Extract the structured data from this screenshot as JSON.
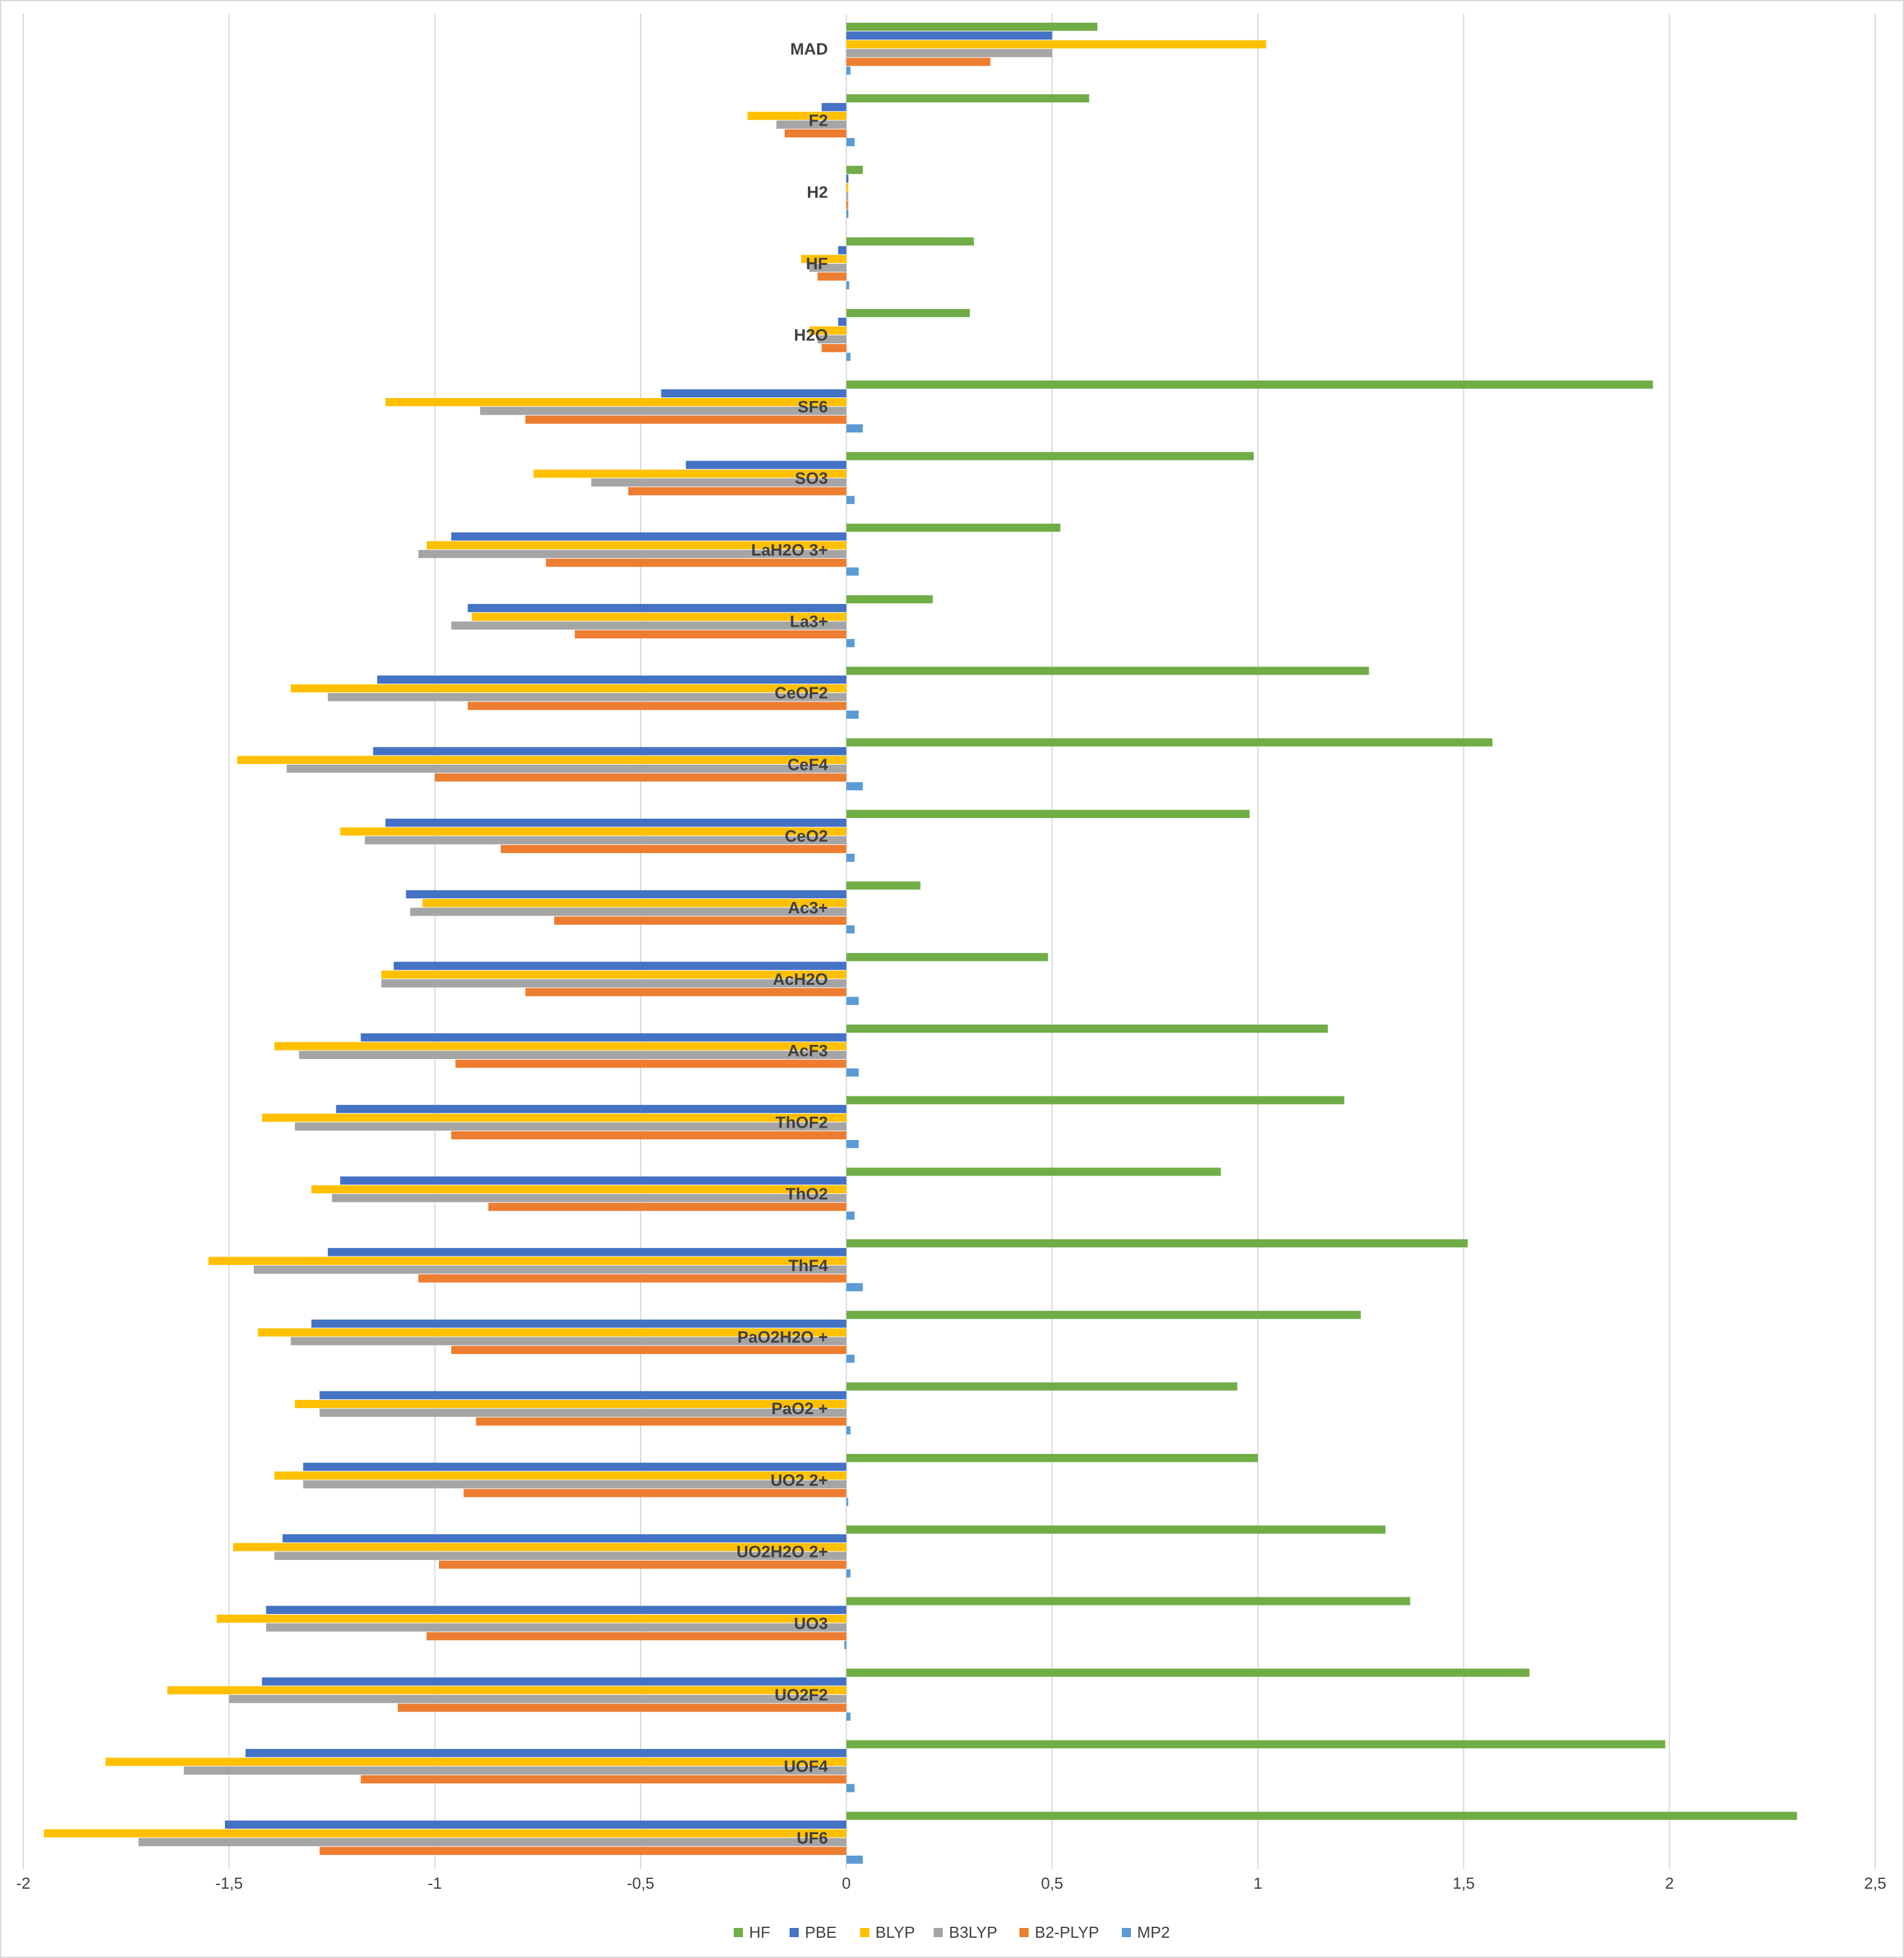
{
  "chart_data": {
    "type": "bar",
    "orientation": "horizontal",
    "title": "",
    "xlabel": "",
    "ylabel": "",
    "xlim": [
      -2,
      2.5
    ],
    "x_ticks": [
      "-2",
      "-1,5",
      "-1",
      "-0,5",
      "0",
      "0,5",
      "1",
      "1,5",
      "2",
      "2,5"
    ],
    "x_tick_values": [
      -2,
      -1.5,
      -1,
      -0.5,
      0,
      0.5,
      1,
      1.5,
      2,
      2.5
    ],
    "grid": "vertical",
    "legend_position": "bottom",
    "categories": [
      "MAD",
      "F2",
      "H2",
      "HF",
      "H2O",
      "SF6",
      "SO3",
      "LaH2O 3+",
      "La3+",
      "CeOF2",
      "CeF4",
      "CeO2",
      "Ac3+",
      "AcH2O",
      "AcF3",
      "ThOF2",
      "ThO2",
      "ThF4",
      "PaO2H2O +",
      "PaO2 +",
      "UO2 2+",
      "UO2H2O 2+",
      "UO3",
      "UO2F2",
      "UOF4",
      "UF6"
    ],
    "series": [
      {
        "name": "HF",
        "color": "#70AD47",
        "values": [
          0.61,
          0.59,
          0.04,
          0.31,
          0.3,
          1.96,
          0.99,
          0.52,
          0.21,
          1.27,
          1.57,
          0.98,
          0.18,
          0.49,
          1.17,
          1.21,
          0.91,
          1.51,
          1.25,
          0.95,
          1.0,
          1.31,
          1.37,
          1.66,
          1.99,
          2.31
        ]
      },
      {
        "name": "PBE",
        "color": "#4472C4",
        "values": [
          0.5,
          -0.06,
          0.005,
          -0.02,
          -0.02,
          -0.45,
          -0.39,
          -0.96,
          -0.92,
          -1.14,
          -1.15,
          -1.12,
          -1.07,
          -1.1,
          -1.18,
          -1.24,
          -1.23,
          -1.26,
          -1.3,
          -1.28,
          -1.32,
          -1.37,
          -1.41,
          -1.42,
          -1.46,
          -1.51
        ]
      },
      {
        "name": "BLYP",
        "color": "#FFC000",
        "values": [
          1.02,
          -0.24,
          0.003,
          -0.11,
          -0.09,
          -1.12,
          -0.76,
          -1.02,
          -0.91,
          -1.35,
          -1.48,
          -1.23,
          -1.03,
          -1.13,
          -1.39,
          -1.42,
          -1.3,
          -1.55,
          -1.43,
          -1.34,
          -1.39,
          -1.49,
          -1.53,
          -1.65,
          -1.8,
          -1.95
        ]
      },
      {
        "name": "B3LYP",
        "color": "#A5A5A5",
        "values": [
          0.5,
          -0.17,
          0.002,
          -0.09,
          -0.07,
          -0.89,
          -0.62,
          -1.04,
          -0.96,
          -1.26,
          -1.36,
          -1.17,
          -1.06,
          -1.13,
          -1.33,
          -1.34,
          -1.25,
          -1.44,
          -1.35,
          -1.28,
          -1.32,
          -1.39,
          -1.41,
          -1.5,
          -1.61,
          -1.72
        ]
      },
      {
        "name": "B2-PLYP",
        "color": "#ED7D31",
        "values": [
          0.35,
          -0.15,
          0.001,
          -0.07,
          -0.06,
          -0.78,
          -0.53,
          -0.73,
          -0.66,
          -0.92,
          -1.0,
          -0.84,
          -0.71,
          -0.78,
          -0.95,
          -0.96,
          -0.87,
          -1.04,
          -0.96,
          -0.9,
          -0.93,
          -0.99,
          -1.02,
          -1.09,
          -1.18,
          -1.28
        ]
      },
      {
        "name": "MP2",
        "color": "#5B9BD5",
        "values": [
          0.01,
          0.02,
          0.005,
          0.007,
          0.01,
          0.04,
          0.02,
          0.03,
          0.02,
          0.03,
          0.04,
          0.02,
          0.02,
          0.03,
          0.03,
          0.03,
          0.02,
          0.04,
          0.02,
          0.01,
          0.002,
          0.01,
          -0.005,
          0.01,
          0.02,
          0.04
        ]
      }
    ]
  }
}
